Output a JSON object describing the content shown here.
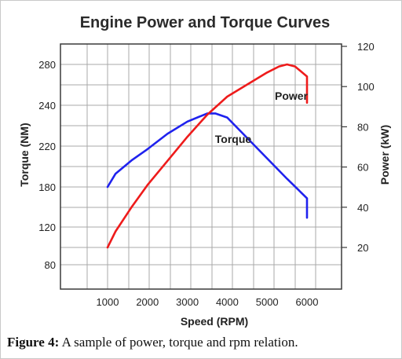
{
  "chart_data": {
    "type": "line",
    "title": "Engine Power and Torque Curves",
    "xlabel": "Speed (RPM)",
    "ylabel_left": "Torque (NM)",
    "ylabel_right": "Power (kW)",
    "x_ticks": [
      "1000",
      "2000",
      "3000",
      "4000",
      "5000",
      "6000"
    ],
    "y_left_ticks": [
      "80",
      "120",
      "180",
      "220",
      "240",
      "280"
    ],
    "y_right_ticks": [
      "20",
      "40",
      "60",
      "80",
      "100",
      "120"
    ],
    "ylim_right": [
      20,
      120
    ],
    "grid": true,
    "series": [
      {
        "name": "Torque",
        "axis": "left",
        "color": "#1f22ee",
        "x": [
          800,
          1200,
          1600,
          2000,
          2500,
          3000,
          3500,
          3700,
          4000,
          4500,
          5000,
          5500,
          6000,
          6400
        ],
        "y": [
          180,
          193,
          206,
          217,
          226,
          232,
          236,
          236,
          234,
          224,
          208,
          188,
          163,
          134
        ]
      },
      {
        "name": "Power",
        "axis": "right",
        "color": "#ee1b1b",
        "x": [
          800,
          1200,
          1600,
          2000,
          2500,
          3000,
          3500,
          4000,
          4500,
          5000,
          5300,
          5500,
          5700,
          6000,
          6600
        ],
        "y": [
          15,
          28,
          40,
          51,
          63,
          75,
          86,
          95,
          101,
          107,
          110,
          111,
          110,
          105,
          92
        ]
      }
    ]
  },
  "caption": {
    "label": "Figure 4:",
    "text": " A sample of power, torque and rpm relation."
  }
}
